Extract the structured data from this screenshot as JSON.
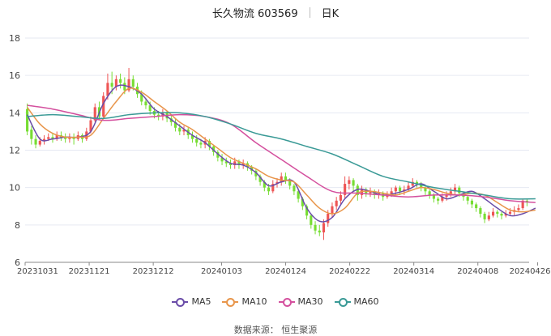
{
  "header": {
    "stock_name": "长久物流 603569",
    "period": "日K"
  },
  "source_text": "数据来源：  恒生聚源",
  "colors": {
    "up": "#ee5555",
    "down": "#77dd33",
    "ma5": "#6a4ca8",
    "ma10": "#e8954a",
    "ma30": "#d4509e",
    "ma60": "#3a9a96"
  },
  "chart_data": {
    "type": "candlestick",
    "title": "长久物流 603569 日K",
    "ylim": [
      6,
      18
    ],
    "y_ticks": [
      6,
      8,
      10,
      12,
      14,
      16,
      18
    ],
    "x_ticks": [
      {
        "label": "20231031",
        "index": 0
      },
      {
        "label": "20231121",
        "index": 15
      },
      {
        "label": "20231212",
        "index": 30
      },
      {
        "label": "20240103",
        "index": 46
      },
      {
        "label": "20240124",
        "index": 61
      },
      {
        "label": "20240222",
        "index": 76
      },
      {
        "label": "20240314",
        "index": 91
      },
      {
        "label": "20240408",
        "index": 106
      },
      {
        "label": "20240426",
        "index": 120
      }
    ],
    "candles": [
      [
        14.2,
        13.0,
        14.5,
        12.8
      ],
      [
        13.1,
        12.6,
        13.3,
        12.3
      ],
      [
        12.6,
        12.3,
        12.8,
        12.1
      ],
      [
        12.3,
        12.5,
        12.7,
        12.2
      ],
      [
        12.5,
        12.6,
        12.8,
        12.3
      ],
      [
        12.6,
        12.7,
        12.9,
        12.5
      ],
      [
        12.7,
        12.6,
        12.9,
        12.4
      ],
      [
        12.6,
        12.8,
        13.0,
        12.5
      ],
      [
        12.8,
        12.7,
        13.0,
        12.5
      ],
      [
        12.7,
        12.6,
        12.9,
        12.4
      ],
      [
        12.6,
        12.7,
        12.9,
        12.4
      ],
      [
        12.7,
        12.6,
        12.9,
        12.3
      ],
      [
        12.6,
        12.8,
        13.0,
        12.5
      ],
      [
        12.8,
        12.6,
        12.9,
        12.4
      ],
      [
        12.6,
        13.0,
        13.2,
        12.5
      ],
      [
        13.0,
        13.6,
        13.8,
        12.9
      ],
      [
        13.6,
        14.3,
        14.5,
        13.5
      ],
      [
        14.3,
        13.8,
        14.6,
        13.6
      ],
      [
        13.8,
        14.9,
        15.1,
        13.7
      ],
      [
        14.9,
        15.6,
        16.1,
        14.7
      ],
      [
        15.6,
        15.4,
        16.2,
        15.0
      ],
      [
        15.4,
        15.8,
        16.0,
        15.2
      ],
      [
        15.8,
        15.6,
        16.1,
        15.3
      ],
      [
        15.6,
        15.2,
        15.9,
        15.0
      ],
      [
        15.2,
        15.8,
        16.4,
        15.1
      ],
      [
        15.8,
        15.4,
        16.0,
        15.2
      ],
      [
        15.4,
        15.0,
        15.6,
        14.8
      ],
      [
        15.0,
        14.6,
        15.2,
        14.4
      ],
      [
        14.6,
        14.4,
        14.8,
        14.2
      ],
      [
        14.4,
        14.1,
        14.6,
        13.9
      ],
      [
        14.1,
        13.9,
        14.3,
        13.7
      ],
      [
        13.9,
        13.8,
        14.1,
        13.6
      ],
      [
        13.8,
        14.0,
        14.2,
        13.6
      ],
      [
        14.0,
        13.7,
        14.1,
        13.5
      ],
      [
        13.7,
        13.5,
        13.9,
        13.3
      ],
      [
        13.5,
        13.2,
        13.7,
        13.0
      ],
      [
        13.2,
        13.0,
        13.4,
        12.8
      ],
      [
        13.0,
        13.1,
        13.3,
        12.8
      ],
      [
        13.1,
        12.8,
        13.2,
        12.6
      ],
      [
        12.8,
        12.6,
        13.0,
        12.4
      ],
      [
        12.6,
        12.4,
        12.8,
        12.2
      ],
      [
        12.4,
        12.3,
        12.6,
        12.1
      ],
      [
        12.3,
        12.5,
        12.7,
        12.1
      ],
      [
        12.5,
        12.2,
        12.6,
        12.0
      ],
      [
        12.2,
        11.9,
        12.3,
        11.7
      ],
      [
        11.9,
        11.6,
        12.0,
        11.4
      ],
      [
        11.6,
        11.4,
        11.8,
        11.2
      ],
      [
        11.4,
        11.3,
        11.6,
        11.1
      ],
      [
        11.3,
        11.2,
        11.5,
        11.0
      ],
      [
        11.2,
        11.4,
        11.6,
        11.0
      ],
      [
        11.4,
        11.2,
        11.5,
        11.0
      ],
      [
        11.2,
        11.3,
        11.5,
        11.0
      ],
      [
        11.3,
        11.1,
        11.4,
        10.9
      ],
      [
        11.1,
        10.9,
        11.2,
        10.7
      ],
      [
        10.9,
        10.6,
        11.0,
        10.4
      ],
      [
        10.6,
        10.3,
        10.7,
        10.1
      ],
      [
        10.3,
        10.0,
        10.4,
        9.8
      ],
      [
        10.0,
        9.8,
        10.2,
        9.6
      ],
      [
        9.8,
        10.2,
        10.4,
        9.7
      ],
      [
        10.2,
        10.3,
        10.5,
        10.0
      ],
      [
        10.3,
        10.6,
        10.8,
        10.1
      ],
      [
        10.6,
        10.4,
        10.8,
        10.2
      ],
      [
        10.4,
        10.1,
        10.5,
        9.9
      ],
      [
        10.1,
        9.8,
        10.2,
        9.6
      ],
      [
        9.8,
        9.4,
        9.9,
        9.2
      ],
      [
        9.4,
        9.0,
        9.5,
        8.8
      ],
      [
        9.0,
        8.5,
        9.1,
        8.3
      ],
      [
        8.5,
        8.0,
        8.6,
        7.8
      ],
      [
        8.0,
        7.7,
        8.2,
        7.5
      ],
      [
        7.7,
        7.6,
        8.0,
        7.4
      ],
      [
        7.6,
        8.1,
        8.3,
        7.2
      ],
      [
        8.1,
        8.6,
        8.8,
        7.9
      ],
      [
        8.6,
        9.0,
        9.2,
        8.4
      ],
      [
        9.0,
        9.3,
        9.5,
        8.8
      ],
      [
        9.3,
        9.6,
        9.8,
        9.1
      ],
      [
        9.6,
        10.2,
        10.6,
        9.4
      ],
      [
        10.2,
        10.4,
        10.6,
        9.9
      ],
      [
        10.4,
        10.1,
        10.5,
        9.8
      ],
      [
        10.1,
        9.6,
        10.2,
        9.3
      ],
      [
        9.6,
        9.9,
        10.1,
        9.4
      ],
      [
        9.9,
        9.7,
        10.0,
        9.5
      ],
      [
        9.7,
        9.8,
        10.0,
        9.5
      ],
      [
        9.8,
        9.6,
        9.9,
        9.4
      ],
      [
        9.6,
        9.7,
        9.9,
        9.4
      ],
      [
        9.7,
        9.5,
        9.8,
        9.3
      ],
      [
        9.5,
        9.6,
        9.8,
        9.4
      ],
      [
        9.6,
        9.8,
        10.0,
        9.5
      ],
      [
        9.8,
        10.0,
        10.1,
        9.6
      ],
      [
        10.0,
        9.8,
        10.1,
        9.6
      ],
      [
        9.8,
        9.9,
        10.1,
        9.6
      ],
      [
        9.9,
        10.1,
        10.3,
        9.8
      ],
      [
        10.1,
        10.3,
        10.5,
        10.0
      ],
      [
        10.3,
        10.2,
        10.4,
        10.0
      ],
      [
        10.2,
        10.0,
        10.3,
        9.8
      ],
      [
        10.0,
        9.8,
        10.1,
        9.6
      ],
      [
        9.8,
        9.6,
        9.9,
        9.4
      ],
      [
        9.6,
        9.4,
        9.7,
        9.2
      ],
      [
        9.4,
        9.3,
        9.5,
        9.1
      ],
      [
        9.3,
        9.5,
        9.7,
        9.2
      ],
      [
        9.5,
        9.6,
        9.8,
        9.3
      ],
      [
        9.6,
        9.8,
        10.0,
        9.5
      ],
      [
        9.8,
        10.0,
        10.2,
        9.6
      ],
      [
        10.0,
        9.7,
        10.1,
        9.5
      ],
      [
        9.7,
        9.5,
        9.8,
        9.3
      ],
      [
        9.5,
        9.3,
        9.6,
        9.1
      ],
      [
        9.3,
        9.1,
        9.4,
        8.9
      ],
      [
        9.1,
        8.9,
        9.2,
        8.7
      ],
      [
        8.9,
        8.6,
        9.0,
        8.4
      ],
      [
        8.6,
        8.3,
        8.7,
        8.1
      ],
      [
        8.3,
        8.5,
        8.7,
        8.2
      ],
      [
        8.5,
        8.7,
        8.9,
        8.4
      ],
      [
        8.7,
        8.6,
        8.8,
        8.4
      ],
      [
        8.6,
        8.5,
        8.7,
        8.3
      ],
      [
        8.5,
        8.6,
        8.8,
        8.4
      ],
      [
        8.6,
        8.7,
        8.9,
        8.5
      ],
      [
        8.7,
        8.8,
        9.0,
        8.5
      ],
      [
        8.8,
        8.9,
        9.1,
        8.7
      ],
      [
        8.9,
        9.3,
        9.4,
        8.8
      ],
      [
        9.3,
        9.2,
        9.4,
        9.0
      ]
    ],
    "series": [
      {
        "name": "MA5",
        "color": "#6a4ca8",
        "points": [
          [
            0,
            13.9
          ],
          [
            3,
            12.6
          ],
          [
            6,
            12.6
          ],
          [
            9,
            12.7
          ],
          [
            12,
            12.7
          ],
          [
            15,
            13.0
          ],
          [
            18,
            14.5
          ],
          [
            21,
            15.4
          ],
          [
            24,
            15.4
          ],
          [
            27,
            15.0
          ],
          [
            30,
            14.2
          ],
          [
            33,
            13.8
          ],
          [
            36,
            13.3
          ],
          [
            39,
            12.8
          ],
          [
            42,
            12.4
          ],
          [
            45,
            11.8
          ],
          [
            48,
            11.3
          ],
          [
            51,
            11.2
          ],
          [
            54,
            10.8
          ],
          [
            57,
            10.1
          ],
          [
            60,
            10.3
          ],
          [
            63,
            10.3
          ],
          [
            66,
            8.9
          ],
          [
            69,
            8.2
          ],
          [
            72,
            8.4
          ],
          [
            75,
            9.4
          ],
          [
            78,
            9.9
          ],
          [
            81,
            9.8
          ],
          [
            84,
            9.6
          ],
          [
            87,
            9.7
          ],
          [
            90,
            9.9
          ],
          [
            93,
            10.2
          ],
          [
            96,
            9.8
          ],
          [
            99,
            9.4
          ],
          [
            102,
            9.6
          ],
          [
            105,
            9.8
          ],
          [
            108,
            9.4
          ],
          [
            111,
            8.9
          ],
          [
            114,
            8.5
          ],
          [
            117,
            8.6
          ],
          [
            120,
            8.9
          ]
        ]
      },
      {
        "name": "MA10",
        "color": "#e8954a",
        "points": [
          [
            0,
            14.3
          ],
          [
            3,
            13.4
          ],
          [
            6,
            12.9
          ],
          [
            9,
            12.7
          ],
          [
            12,
            12.7
          ],
          [
            15,
            12.8
          ],
          [
            18,
            13.7
          ],
          [
            21,
            14.6
          ],
          [
            24,
            15.3
          ],
          [
            27,
            15.1
          ],
          [
            30,
            14.6
          ],
          [
            33,
            14.1
          ],
          [
            36,
            13.5
          ],
          [
            39,
            13.1
          ],
          [
            42,
            12.6
          ],
          [
            45,
            12.1
          ],
          [
            48,
            11.6
          ],
          [
            51,
            11.3
          ],
          [
            54,
            11.0
          ],
          [
            57,
            10.6
          ],
          [
            60,
            10.4
          ],
          [
            63,
            10.3
          ],
          [
            66,
            9.6
          ],
          [
            69,
            8.9
          ],
          [
            72,
            8.6
          ],
          [
            75,
            8.9
          ],
          [
            78,
            9.7
          ],
          [
            81,
            9.8
          ],
          [
            84,
            9.7
          ],
          [
            87,
            9.6
          ],
          [
            90,
            9.8
          ],
          [
            93,
            10.0
          ],
          [
            96,
            9.9
          ],
          [
            99,
            9.7
          ],
          [
            102,
            9.6
          ],
          [
            105,
            9.7
          ],
          [
            108,
            9.6
          ],
          [
            111,
            9.2
          ],
          [
            114,
            8.8
          ],
          [
            117,
            8.7
          ],
          [
            120,
            8.8
          ]
        ]
      },
      {
        "name": "MA30",
        "color": "#d4509e",
        "points": [
          [
            0,
            14.4
          ],
          [
            6,
            14.2
          ],
          [
            12,
            13.9
          ],
          [
            18,
            13.6
          ],
          [
            24,
            13.7
          ],
          [
            30,
            13.8
          ],
          [
            36,
            13.9
          ],
          [
            42,
            13.8
          ],
          [
            48,
            13.4
          ],
          [
            54,
            12.4
          ],
          [
            60,
            11.5
          ],
          [
            66,
            10.6
          ],
          [
            72,
            9.8
          ],
          [
            78,
            9.7
          ],
          [
            84,
            9.6
          ],
          [
            90,
            9.5
          ],
          [
            96,
            9.6
          ],
          [
            102,
            9.6
          ],
          [
            108,
            9.5
          ],
          [
            114,
            9.3
          ],
          [
            120,
            9.2
          ]
        ]
      },
      {
        "name": "MA60",
        "color": "#3a9a96",
        "points": [
          [
            0,
            13.8
          ],
          [
            6,
            13.9
          ],
          [
            12,
            13.8
          ],
          [
            18,
            13.7
          ],
          [
            24,
            13.9
          ],
          [
            30,
            14.0
          ],
          [
            36,
            14.0
          ],
          [
            42,
            13.8
          ],
          [
            48,
            13.4
          ],
          [
            54,
            12.9
          ],
          [
            60,
            12.6
          ],
          [
            66,
            12.2
          ],
          [
            72,
            11.8
          ],
          [
            78,
            11.2
          ],
          [
            84,
            10.6
          ],
          [
            90,
            10.3
          ],
          [
            96,
            10.0
          ],
          [
            102,
            9.8
          ],
          [
            108,
            9.6
          ],
          [
            114,
            9.4
          ],
          [
            120,
            9.4
          ]
        ]
      }
    ]
  }
}
